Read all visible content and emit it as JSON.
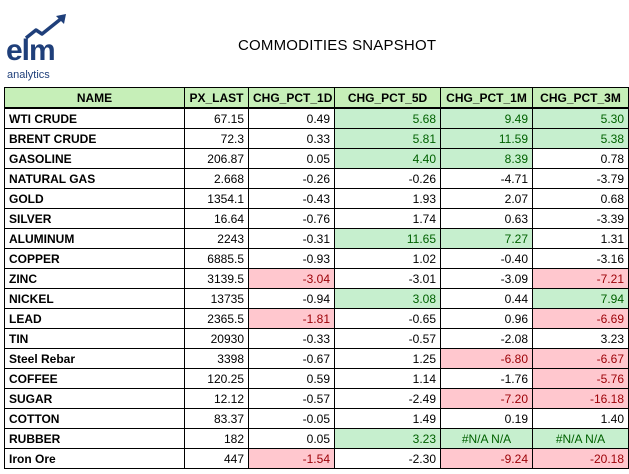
{
  "logo": {
    "word": "elm",
    "sub": "analytics",
    "icon": "rising-chart-arrow-icon",
    "color": "#1f3f7a"
  },
  "title": "COMMODITIES SNAPSHOT",
  "colors": {
    "header_bg": "#c6efb8",
    "positive_bg": "#c6efce",
    "positive_text": "#006100",
    "negative_bg": "#ffc7ce",
    "negative_text": "#9c0006"
  },
  "columns": [
    "NAME",
    "PX_LAST",
    "CHG_PCT_1D",
    "CHG_PCT_5D",
    "CHG_PCT_1M",
    "CHG_PCT_3M"
  ],
  "rows": [
    {
      "name": "WTI CRUDE",
      "px": "67.15",
      "d1": "0.49",
      "d5": "5.68",
      "m1": "9.49",
      "m3": "5.30",
      "hl": [
        "",
        "pos",
        "pos",
        "pos"
      ]
    },
    {
      "name": "BRENT CRUDE",
      "px": "72.3",
      "d1": "0.33",
      "d5": "5.81",
      "m1": "11.59",
      "m3": "5.38",
      "hl": [
        "",
        "pos",
        "pos",
        "pos"
      ]
    },
    {
      "name": "GASOLINE",
      "px": "206.87",
      "d1": "0.05",
      "d5": "4.40",
      "m1": "8.39",
      "m3": "0.78",
      "hl": [
        "",
        "pos",
        "pos",
        ""
      ]
    },
    {
      "name": "NATURAL GAS",
      "px": "2.668",
      "d1": "-0.26",
      "d5": "-0.26",
      "m1": "-4.71",
      "m3": "-3.79",
      "hl": [
        "",
        "",
        "",
        ""
      ]
    },
    {
      "name": "GOLD",
      "px": "1354.1",
      "d1": "-0.43",
      "d5": "1.93",
      "m1": "2.07",
      "m3": "0.68",
      "hl": [
        "",
        "",
        "",
        ""
      ]
    },
    {
      "name": "SILVER",
      "px": "16.64",
      "d1": "-0.76",
      "d5": "1.74",
      "m1": "0.63",
      "m3": "-3.39",
      "hl": [
        "",
        "",
        "",
        ""
      ]
    },
    {
      "name": "ALUMINUM",
      "px": "2243",
      "d1": "-0.31",
      "d5": "11.65",
      "m1": "7.27",
      "m3": "1.31",
      "hl": [
        "",
        "pos",
        "pos",
        ""
      ]
    },
    {
      "name": "COPPER",
      "px": "6885.5",
      "d1": "-0.93",
      "d5": "1.02",
      "m1": "-0.40",
      "m3": "-3.16",
      "hl": [
        "",
        "",
        "",
        ""
      ]
    },
    {
      "name": "ZINC",
      "px": "3139.5",
      "d1": "-3.04",
      "d5": "-3.01",
      "m1": "-3.09",
      "m3": "-7.21",
      "hl": [
        "neg",
        "",
        "",
        "neg"
      ]
    },
    {
      "name": "NICKEL",
      "px": "13735",
      "d1": "-0.94",
      "d5": "3.08",
      "m1": "0.44",
      "m3": "7.94",
      "hl": [
        "",
        "pos",
        "",
        "pos"
      ]
    },
    {
      "name": "LEAD",
      "px": "2365.5",
      "d1": "-1.81",
      "d5": "-0.65",
      "m1": "0.96",
      "m3": "-6.69",
      "hl": [
        "neg",
        "",
        "",
        "neg"
      ]
    },
    {
      "name": "TIN",
      "px": "20930",
      "d1": "-0.33",
      "d5": "-0.57",
      "m1": "-2.08",
      "m3": "3.23",
      "hl": [
        "",
        "",
        "",
        ""
      ]
    },
    {
      "name": "Steel Rebar",
      "px": "3398",
      "d1": "-0.67",
      "d5": "1.25",
      "m1": "-6.80",
      "m3": "-6.67",
      "hl": [
        "",
        "",
        "neg",
        "neg"
      ]
    },
    {
      "name": "COFFEE",
      "px": "120.25",
      "d1": "0.59",
      "d5": "1.14",
      "m1": "-1.76",
      "m3": "-5.76",
      "hl": [
        "",
        "",
        "",
        "neg"
      ]
    },
    {
      "name": "SUGAR",
      "px": "12.12",
      "d1": "-0.57",
      "d5": "-2.49",
      "m1": "-7.20",
      "m3": "-16.18",
      "hl": [
        "",
        "",
        "neg",
        "neg"
      ]
    },
    {
      "name": "COTTON",
      "px": "83.37",
      "d1": "-0.05",
      "d5": "1.49",
      "m1": "0.19",
      "m3": "1.40",
      "hl": [
        "",
        "",
        "",
        ""
      ]
    },
    {
      "name": "RUBBER",
      "px": "182",
      "d1": "0.05",
      "d5": "3.23",
      "m1": "#N/A N/A",
      "m3": "#N/A N/A",
      "hl": [
        "",
        "pos",
        "pos",
        "pos"
      ]
    },
    {
      "name": "Iron Ore",
      "px": "447",
      "d1": "-1.54",
      "d5": "-2.30",
      "m1": "-9.24",
      "m3": "-20.18",
      "hl": [
        "neg",
        "",
        "neg",
        "neg"
      ]
    }
  ]
}
